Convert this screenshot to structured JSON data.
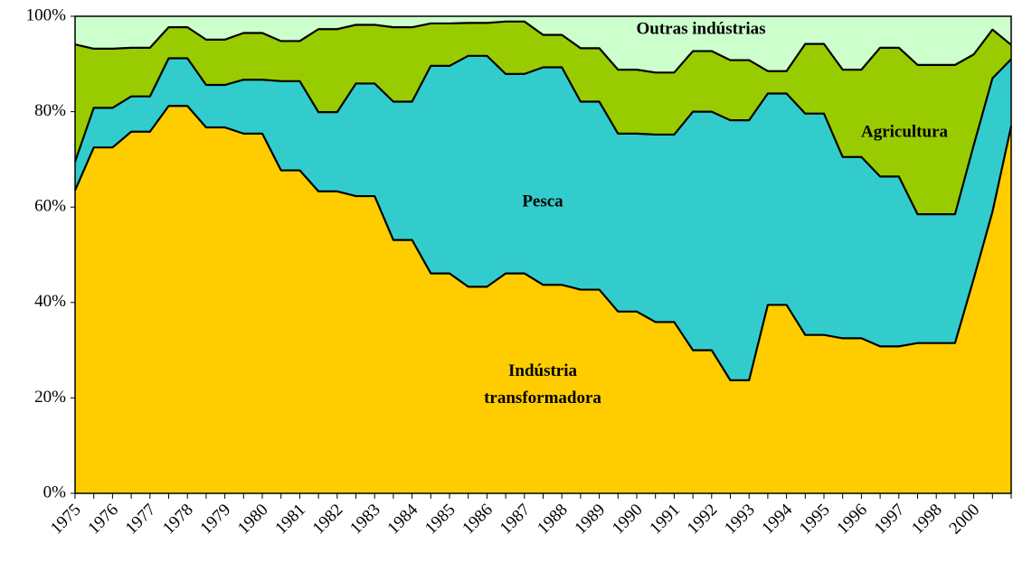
{
  "chart_data": {
    "type": "stacked_area",
    "categories": [
      "1975",
      null,
      "1976",
      null,
      "1977",
      null,
      "1978",
      null,
      "1979",
      null,
      "1980",
      null,
      "1981",
      null,
      "1982",
      null,
      "1983",
      null,
      "1984",
      null,
      "1985",
      null,
      "1986",
      null,
      "1987",
      null,
      "1988",
      null,
      "1989",
      null,
      "1990",
      null,
      "1991",
      null,
      "1992",
      null,
      "1993",
      null,
      "1994",
      null,
      "1995",
      null,
      "1996",
      null,
      "1997",
      null,
      "1998",
      null,
      "2000",
      null,
      null
    ],
    "series": [
      {
        "name": "Indústria transformadora",
        "color": "#ffcc00",
        "values": [
          63.5,
          72.5,
          72.5,
          75.8,
          75.8,
          81.2,
          81.2,
          76.7,
          76.7,
          75.4,
          75.4,
          67.7,
          67.7,
          63.3,
          63.3,
          62.3,
          62.3,
          53.1,
          53.1,
          46.1,
          46.1,
          43.3,
          43.3,
          46.1,
          46.1,
          43.7,
          43.7,
          42.7,
          42.7,
          38.1,
          38.1,
          35.9,
          35.9,
          30.0,
          30.0,
          23.7,
          23.7,
          39.5,
          39.5,
          33.2,
          33.2,
          32.5,
          32.5,
          30.8,
          30.8,
          31.5,
          31.5,
          31.5,
          45,
          59,
          77
        ]
      },
      {
        "name": "Pesca",
        "color": "#33cccc",
        "values": [
          6,
          8.3,
          8.3,
          7.4,
          7.4,
          10.0,
          10.0,
          8.9,
          8.9,
          11.3,
          11.3,
          18.7,
          18.7,
          16.6,
          16.6,
          23.6,
          23.6,
          29.0,
          29.0,
          43.5,
          43.5,
          48.4,
          48.4,
          41.8,
          41.8,
          45.6,
          45.6,
          39.4,
          39.4,
          37.3,
          37.3,
          39.3,
          39.3,
          50.0,
          50.0,
          54.5,
          54.5,
          44.3,
          44.3,
          46.4,
          46.4,
          38.0,
          38.0,
          35.6,
          35.6,
          27.0,
          27.0,
          27.0,
          28,
          28,
          14
        ]
      },
      {
        "name": "Agricultura",
        "color": "#99cc00",
        "values": [
          24.6,
          12.4,
          12.4,
          10.2,
          10.2,
          6.5,
          6.5,
          9.5,
          9.5,
          9.8,
          9.8,
          8.4,
          8.4,
          17.4,
          17.4,
          12.3,
          12.3,
          15.6,
          15.6,
          8.9,
          8.9,
          6.9,
          6.9,
          11.0,
          11.0,
          6.8,
          6.8,
          11.2,
          11.2,
          13.4,
          13.4,
          13.0,
          13.0,
          12.7,
          12.7,
          12.6,
          12.6,
          4.7,
          4.7,
          14.6,
          14.6,
          18.3,
          18.3,
          27.0,
          27.0,
          31.3,
          31.3,
          31.3,
          19,
          10.2,
          3
        ]
      },
      {
        "name": "Outras indústrias",
        "color": "#ccffcc",
        "values": [
          5.9,
          6.8,
          6.8,
          6.6,
          6.6,
          2.3,
          2.3,
          4.9,
          4.9,
          3.5,
          3.5,
          5.2,
          5.2,
          2.7,
          2.7,
          1.8,
          1.8,
          2.3,
          2.3,
          1.5,
          1.5,
          1.4,
          1.4,
          1.1,
          1.1,
          3.9,
          3.9,
          6.7,
          6.7,
          11.2,
          11.2,
          11.8,
          11.8,
          7.3,
          7.3,
          9.2,
          9.2,
          11.5,
          11.5,
          5.8,
          5.8,
          11.2,
          11.2,
          6.6,
          6.6,
          10.2,
          10.2,
          10.2,
          8,
          2.8,
          6
        ]
      }
    ],
    "ylim": [
      0,
      100
    ],
    "yticks": [
      {
        "value": 0,
        "label": "0%"
      },
      {
        "value": 20,
        "label": "20%"
      },
      {
        "value": 40,
        "label": "40%"
      },
      {
        "value": 60,
        "label": "60%"
      },
      {
        "value": 80,
        "label": "80%"
      },
      {
        "value": 100,
        "label": "100%"
      }
    ]
  }
}
